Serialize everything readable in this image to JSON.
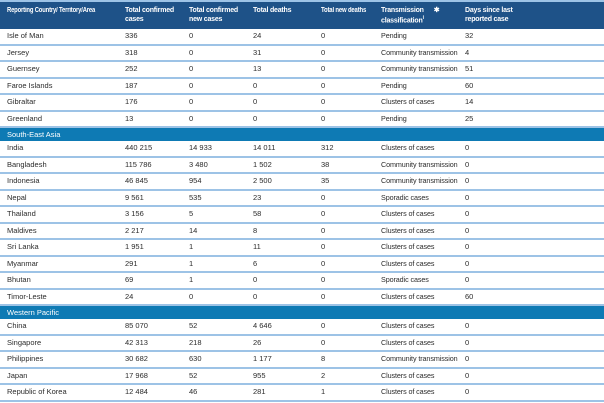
{
  "colors": {
    "header_bg": "#1E5288",
    "section_band_bg": "#0E7AB4",
    "row_separator": "#9DC3E6",
    "body_text": "#2B2B2B",
    "header_text": "#FFFFFF"
  },
  "table": {
    "header": {
      "country": "Reporting Country/ Territory/Area",
      "confirmed": "Total confirmed cases",
      "new_cases": "Total confirmed new cases",
      "deaths": "Total deaths",
      "new_deaths": "Total new deaths",
      "classification_line1": "Transmission",
      "classification_star": "✱",
      "classification_line2": "classification",
      "classification_sup": "i",
      "days": "Days since last reported case"
    },
    "groups": [
      {
        "section": "",
        "rows": [
          {
            "country": "Isle of Man",
            "confirmed": "336",
            "new_cases": "0",
            "deaths": "24",
            "new_deaths": "0",
            "classification": "Pending",
            "days": "32"
          },
          {
            "country": "Jersey",
            "confirmed": "318",
            "new_cases": "0",
            "deaths": "31",
            "new_deaths": "0",
            "classification": "Community transmission",
            "days": "4"
          },
          {
            "country": "Guernsey",
            "confirmed": "252",
            "new_cases": "0",
            "deaths": "13",
            "new_deaths": "0",
            "classification": "Community transmission",
            "days": "51"
          },
          {
            "country": "Faroe Islands",
            "confirmed": "187",
            "new_cases": "0",
            "deaths": "0",
            "new_deaths": "0",
            "classification": "Pending",
            "days": "60"
          },
          {
            "country": "Gibraltar",
            "confirmed": "176",
            "new_cases": "0",
            "deaths": "0",
            "new_deaths": "0",
            "classification": "Clusters of cases",
            "days": "14"
          },
          {
            "country": "Greenland",
            "confirmed": "13",
            "new_cases": "0",
            "deaths": "0",
            "new_deaths": "0",
            "classification": "Pending",
            "days": "25"
          }
        ]
      },
      {
        "section": "South-East Asia",
        "rows": [
          {
            "country": "India",
            "confirmed": "440 215",
            "new_cases": "14 933",
            "deaths": "14 011",
            "new_deaths": "312",
            "classification": "Clusters of cases",
            "days": "0"
          },
          {
            "country": "Bangladesh",
            "confirmed": "115 786",
            "new_cases": "3 480",
            "deaths": "1 502",
            "new_deaths": "38",
            "classification": "Community transmission",
            "days": "0"
          },
          {
            "country": "Indonesia",
            "confirmed": "46 845",
            "new_cases": "954",
            "deaths": "2 500",
            "new_deaths": "35",
            "classification": "Community transmission",
            "days": "0"
          },
          {
            "country": "Nepal",
            "confirmed": "9 561",
            "new_cases": "535",
            "deaths": "23",
            "new_deaths": "0",
            "classification": "Sporadic cases",
            "days": "0"
          },
          {
            "country": "Thailand",
            "confirmed": "3 156",
            "new_cases": "5",
            "deaths": "58",
            "new_deaths": "0",
            "classification": "Clusters of cases",
            "days": "0"
          },
          {
            "country": "Maldives",
            "confirmed": "2 217",
            "new_cases": "14",
            "deaths": "8",
            "new_deaths": "0",
            "classification": "Clusters of cases",
            "days": "0"
          },
          {
            "country": "Sri Lanka",
            "confirmed": "1 951",
            "new_cases": "1",
            "deaths": "11",
            "new_deaths": "0",
            "classification": "Clusters of cases",
            "days": "0"
          },
          {
            "country": "Myanmar",
            "confirmed": "291",
            "new_cases": "1",
            "deaths": "6",
            "new_deaths": "0",
            "classification": "Clusters of cases",
            "days": "0"
          },
          {
            "country": "Bhutan",
            "confirmed": "69",
            "new_cases": "1",
            "deaths": "0",
            "new_deaths": "0",
            "classification": "Sporadic cases",
            "days": "0"
          },
          {
            "country": "Timor-Leste",
            "confirmed": "24",
            "new_cases": "0",
            "deaths": "0",
            "new_deaths": "0",
            "classification": "Clusters of cases",
            "days": "60"
          }
        ]
      },
      {
        "section": "Western Pacific",
        "rows": [
          {
            "country": "China",
            "confirmed": "85 070",
            "new_cases": "52",
            "deaths": "4 646",
            "new_deaths": "0",
            "classification": "Clusters of cases",
            "days": "0"
          },
          {
            "country": "Singapore",
            "confirmed": "42 313",
            "new_cases": "218",
            "deaths": "26",
            "new_deaths": "0",
            "classification": "Clusters of cases",
            "days": "0"
          },
          {
            "country": "Philippines",
            "confirmed": "30 682",
            "new_cases": "630",
            "deaths": "1 177",
            "new_deaths": "8",
            "classification": "Community transmission",
            "days": "0"
          },
          {
            "country": "Japan",
            "confirmed": "17 968",
            "new_cases": "52",
            "deaths": "955",
            "new_deaths": "2",
            "classification": "Clusters of cases",
            "days": "0"
          },
          {
            "country": "Republic of Korea",
            "confirmed": "12 484",
            "new_cases": "46",
            "deaths": "281",
            "new_deaths": "1",
            "classification": "Clusters of cases",
            "days": "0"
          }
        ]
      }
    ]
  }
}
